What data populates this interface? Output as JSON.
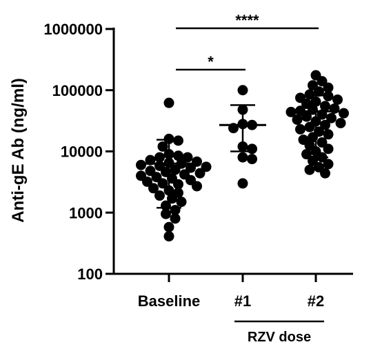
{
  "chart_data": {
    "type": "scatter",
    "title": "",
    "xlabel": "",
    "ylabel": "Anti-gE Ab (ng/ml)",
    "yscale": "log",
    "ylim": [
      100,
      1000000
    ],
    "yticks": [
      {
        "value": 100,
        "label": "100"
      },
      {
        "value": 1000,
        "label": "1000"
      },
      {
        "value": 10000,
        "label": "10000"
      },
      {
        "value": 100000,
        "label": "100000"
      },
      {
        "value": 1000000,
        "label": "1000000"
      }
    ],
    "categories": [
      "Baseline",
      "#1",
      "#2"
    ],
    "group_label": {
      "text": "RZV dose",
      "spans": [
        "#1",
        "#2"
      ]
    },
    "grid": false,
    "legend": "none",
    "series": [
      {
        "category": "Baseline",
        "mean": 6300,
        "sd_low": 1200,
        "sd_high": 15500,
        "points": [
          62000,
          16000,
          15000,
          12000,
          9000,
          8500,
          8000,
          8000,
          7200,
          6800,
          6500,
          6300,
          6000,
          5800,
          5600,
          5400,
          5000,
          4800,
          4600,
          4400,
          4200,
          4000,
          3800,
          3600,
          3400,
          3200,
          3000,
          2900,
          2700,
          2500,
          2300,
          2100,
          1900,
          1700,
          1500,
          1300,
          1100,
          950,
          800,
          580,
          410
        ]
      },
      {
        "category": "#1",
        "mean": 27000,
        "sd_low": 10000,
        "sd_high": 57000,
        "points": [
          100000,
          48000,
          28000,
          27000,
          24000,
          12000,
          11000,
          8000,
          7500,
          3000
        ]
      },
      {
        "category": "#2",
        "mean": 45000,
        "sd_low": 8000,
        "sd_high": 82000,
        "points": [
          175000,
          140000,
          120000,
          110000,
          95000,
          85000,
          80000,
          75000,
          70000,
          65000,
          60000,
          55000,
          50000,
          48000,
          46000,
          44000,
          42000,
          40000,
          37000,
          35000,
          33000,
          31000,
          29000,
          27000,
          25000,
          23000,
          21000,
          19000,
          17000,
          15500,
          14000,
          12500,
          11000,
          10000,
          9000,
          8000,
          7000,
          6200,
          5500,
          5000,
          4400
        ]
      }
    ],
    "significance": [
      {
        "from": "Baseline",
        "to": "#1",
        "label": "*"
      },
      {
        "from": "Baseline",
        "to": "#2",
        "label": "****"
      }
    ]
  }
}
